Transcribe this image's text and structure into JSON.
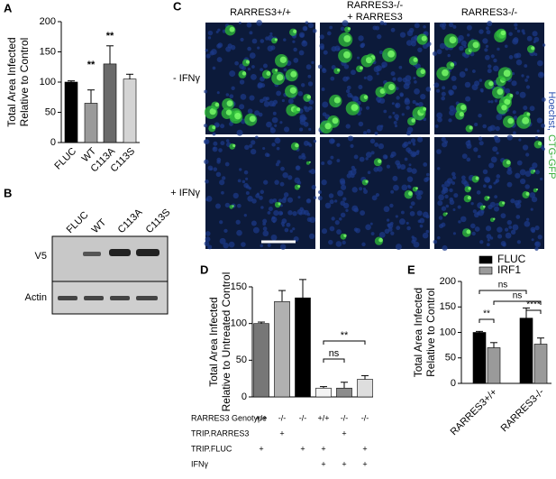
{
  "panels": {
    "A": "A",
    "B": "B",
    "C": "C",
    "D": "D",
    "E": "E"
  },
  "chart_data": [
    {
      "type": "bar",
      "ylabel": [
        "Total Area Infected",
        "Relative to Control"
      ],
      "categories": [
        "FLUC",
        "WT",
        "C113A",
        "C113S"
      ],
      "values": [
        100,
        65,
        130,
        105
      ],
      "errors": [
        2,
        22,
        30,
        8
      ],
      "colors": [
        "#000000",
        "#9a9a9a",
        "#6a6a6a",
        "#d4d4d4"
      ],
      "ylim": [
        0,
        200
      ],
      "yticks": [
        0,
        50,
        100,
        150,
        200
      ],
      "annotations": [
        "**",
        "**"
      ]
    },
    {
      "type": "bar",
      "ylabel": [
        "Total Area Infected",
        "Relative to Untreated Control"
      ],
      "categories": [
        null,
        null,
        null,
        null,
        null,
        null
      ],
      "values": [
        100,
        130,
        135,
        12,
        12,
        24
      ],
      "errors": [
        2,
        15,
        25,
        2,
        8,
        5
      ],
      "colors": [
        "#777777",
        "#b0b0b0",
        "#000000",
        "#f4f4f4",
        "#8c8c8c",
        "#dedede"
      ],
      "ylim": [
        0,
        150
      ],
      "yticks": [
        0,
        50,
        100,
        150
      ],
      "annotations": [
        "ns",
        "**"
      ],
      "table": [
        {
          "label": "RARRES3 Genotype",
          "cells": [
            "+/+",
            "-/-",
            "-/-",
            "+/+",
            "-/-",
            "-/-"
          ]
        },
        {
          "label": "TRIP.RARRES3",
          "cells": [
            null,
            "+",
            null,
            null,
            "+",
            null
          ]
        },
        {
          "label": "TRIP.FLUC",
          "cells": [
            "+",
            null,
            "+",
            "+",
            null,
            "+"
          ]
        },
        {
          "label": "IFNγ",
          "cells": [
            null,
            null,
            null,
            "+",
            "+",
            "+"
          ]
        }
      ]
    },
    {
      "type": "grouped-bar",
      "ylabel": [
        "Total Area Infected",
        "Relative to Control"
      ],
      "categories": [
        "RARRES3+/+",
        "RARRES3-/-"
      ],
      "series": [
        {
          "name": "FLUC",
          "color": "#000000",
          "values": [
            100,
            128
          ],
          "errors": [
            2,
            20
          ]
        },
        {
          "name": "IRF1",
          "color": "#9a9a9a",
          "values": [
            70,
            77
          ],
          "errors": [
            10,
            12
          ]
        }
      ],
      "ylim": [
        0,
        200
      ],
      "yticks": [
        0,
        50,
        100,
        150,
        200
      ],
      "annotations": [
        "**",
        "ns",
        "ns",
        "****"
      ]
    }
  ],
  "blot": {
    "lanes": [
      "FLUC",
      "WT",
      "C113A",
      "C113S"
    ],
    "rows": [
      "V5",
      "Actin"
    ]
  },
  "images": {
    "columns": [
      [
        "RARRES3+/+"
      ],
      [
        "RARRES3-/-",
        "+ RARRES3"
      ],
      [
        "RARRES3-/-"
      ]
    ],
    "rows": [
      "- IFNγ",
      "+ IFNγ"
    ],
    "stain": [
      "Hoechst,",
      "CTG-GFP"
    ]
  }
}
